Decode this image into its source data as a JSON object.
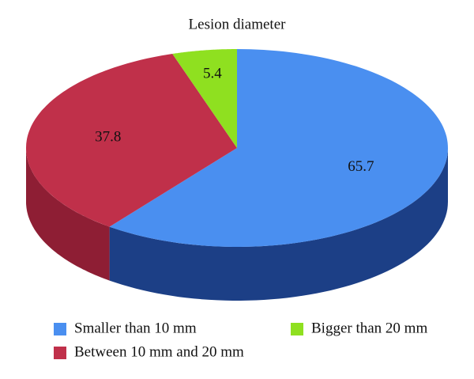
{
  "chart_data": {
    "type": "pie",
    "title": "Lesion diameter",
    "categories": [
      "Smaller than 10 mm",
      "Between 10 mm and 20 mm",
      "Bigger than 20 mm"
    ],
    "values": [
      65.7,
      37.8,
      5.4
    ],
    "colors": [
      "#4a8ff0",
      "#c0304a",
      "#8fe020"
    ],
    "side_colors": [
      "#1c3f86",
      "#8e1e34",
      "#5f9a12"
    ]
  }
}
